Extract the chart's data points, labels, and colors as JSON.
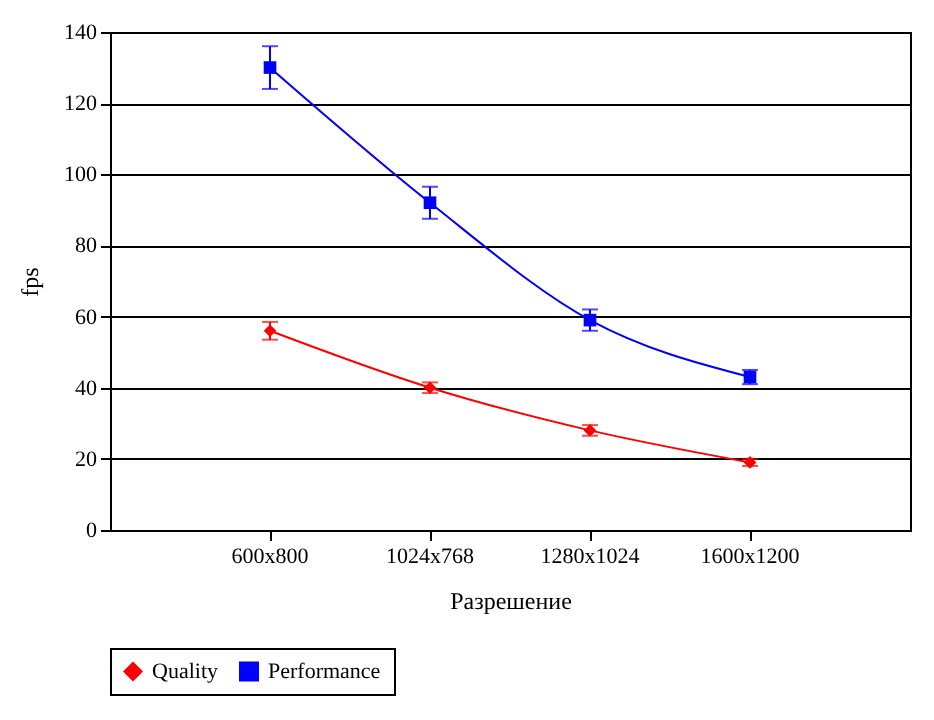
{
  "chart_data": {
    "type": "line",
    "xlabel": "Разрешение",
    "ylabel": "fps",
    "categories": [
      "600x800",
      "1024x768",
      "1280x1024",
      "1600x1200"
    ],
    "series": [
      {
        "name": "Quality",
        "color": "#ff0000",
        "marker": "diamond",
        "values": [
          56,
          40,
          28,
          19
        ],
        "errors": [
          2.5,
          1.5,
          1.5,
          1
        ]
      },
      {
        "name": "Performance",
        "color": "#0000ff",
        "marker": "square",
        "values": [
          130,
          92,
          59,
          43
        ],
        "errors": [
          6,
          4.5,
          3,
          2
        ]
      }
    ],
    "ylim": [
      0,
      140
    ],
    "yticks": [
      0,
      20,
      40,
      60,
      80,
      100,
      120,
      140
    ],
    "grid": "y",
    "legend": "bottom",
    "line_style": "solid"
  }
}
